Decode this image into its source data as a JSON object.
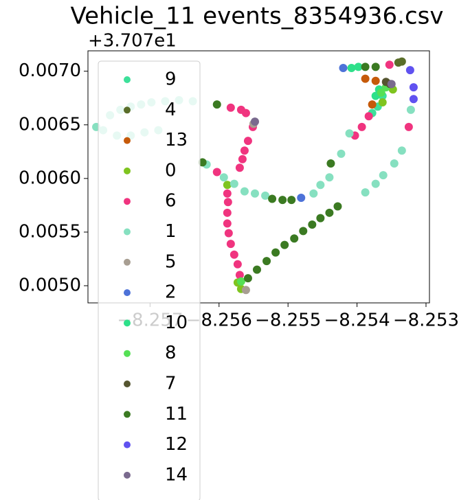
{
  "chart_data": {
    "type": "scatter",
    "title": "Vehicle_11 events_8354936.csv",
    "y_offset_label": "+3.707e1",
    "xlim": [
      -8.2579,
      -8.25295
    ],
    "ylim": [
      0.00484,
      0.00719
    ],
    "xticks": [
      {
        "value": -8.257,
        "label": "−8.257"
      },
      {
        "value": -8.256,
        "label": "−8.256"
      },
      {
        "value": -8.255,
        "label": "−8.255"
      },
      {
        "value": -8.254,
        "label": "−8.254"
      },
      {
        "value": -8.253,
        "label": "−8.253"
      }
    ],
    "yticks": [
      {
        "value": 0.005,
        "label": "0.0050"
      },
      {
        "value": 0.0055,
        "label": "0.0055"
      },
      {
        "value": 0.006,
        "label": "0.0060"
      },
      {
        "value": 0.0065,
        "label": "0.0065"
      },
      {
        "value": 0.007,
        "label": "0.0070"
      }
    ],
    "grid": false,
    "legend": "upper left",
    "series": [
      {
        "name": "9",
        "color": "#3de09a",
        "x": [
          -8.25363,
          -8.2537,
          -8.25378
        ],
        "y": [
          0.00677,
          0.00667,
          0.00661
        ]
      },
      {
        "name": "4",
        "color": "#5a6e2a",
        "x": [
          -8.2534,
          -8.25335,
          -8.25353
        ],
        "y": [
          0.00708,
          0.00709,
          0.00688
        ]
      },
      {
        "name": "13",
        "color": "#c65a0a",
        "x": [
          -8.25378,
          -8.25388,
          -8.25373
        ],
        "y": [
          0.00669,
          0.00693,
          0.00691
        ]
      },
      {
        "name": "0",
        "color": "#7fc41f",
        "x": [
          -8.25573,
          -8.25568,
          -8.25588,
          -8.25348,
          -8.25363
        ],
        "y": [
          0.00503,
          0.00497,
          0.00594,
          0.00683,
          0.00671
        ]
      },
      {
        "name": "6",
        "color": "#f0347f",
        "x": [
          -8.25588,
          -8.25587,
          -8.25588,
          -8.25588,
          -8.25586,
          -8.25583,
          -8.25578,
          -8.25573,
          -8.2557,
          -8.2557,
          -8.25566,
          -8.25563,
          -8.25558,
          -8.25551,
          -8.25583,
          -8.25568,
          -8.25561,
          -8.25603,
          -8.25353,
          -8.25325,
          -8.25383,
          -8.25393,
          -8.25403
        ],
        "y": [
          0.00586,
          0.00578,
          0.00568,
          0.00558,
          0.00549,
          0.00539,
          0.00529,
          0.0052,
          0.0051,
          0.0061,
          0.00618,
          0.00626,
          0.00635,
          0.00648,
          0.00666,
          0.00664,
          0.00661,
          0.00606,
          0.00706,
          0.00648,
          0.00658,
          0.00648,
          0.0064
        ]
      },
      {
        "name": "1",
        "color": "#86e0c0",
        "x": [
          -8.25618,
          -8.25593,
          -8.25578,
          -8.25563,
          -8.25548,
          -8.25533,
          -8.25463,
          -8.25453,
          -8.2544,
          -8.25423,
          -8.25411,
          -8.25388,
          -8.25373,
          -8.25362,
          -8.25346,
          -8.25335,
          -8.25322,
          -8.25758,
          -8.25743,
          -8.25728,
          -8.25713,
          -8.25698,
          -8.25678,
          -8.25658,
          -8.25638,
          -8.25778,
          -8.25768,
          -8.25748,
          -8.25728,
          -8.25708,
          -8.25688
        ],
        "y": [
          0.00613,
          0.00601,
          0.00595,
          0.00588,
          0.00586,
          0.00584,
          0.00586,
          0.00594,
          0.00601,
          0.00623,
          0.00642,
          0.00587,
          0.00595,
          0.00603,
          0.00614,
          0.00626,
          0.00664,
          0.00659,
          0.00664,
          0.00667,
          0.00669,
          0.00671,
          0.00672,
          0.00673,
          0.00672,
          0.00648,
          0.00645,
          0.0064,
          0.0064,
          0.00643,
          0.00645
        ]
      },
      {
        "name": "5",
        "color": "#a89e92",
        "x": [
          -8.2555,
          -8.25561
        ],
        "y": [
          0.00651,
          0.00496
        ]
      },
      {
        "name": "2",
        "color": "#4d72d8",
        "x": [
          -8.2542,
          -8.25481
        ],
        "y": [
          0.00703,
          0.00582
        ]
      },
      {
        "name": "10",
        "color": "#2ee08a",
        "x": [
          -8.25408,
          -8.25398,
          -8.25368,
          -8.25373
        ],
        "y": [
          0.00703,
          0.00704,
          0.00683,
          0.00677
        ]
      },
      {
        "name": "8",
        "color": "#55e055",
        "x": [
          -8.25568,
          -8.25358,
          -8.25365
        ],
        "y": [
          0.00504,
          0.00685,
          0.0068
        ]
      },
      {
        "name": "7",
        "color": "#555530",
        "x": [
          -8.25358,
          -8.25352
        ],
        "y": [
          0.0069,
          0.00688
        ]
      },
      {
        "name": "11",
        "color": "#3b7a22",
        "x": [
          -8.25558,
          -8.25545,
          -8.25531,
          -8.25518,
          -8.25505,
          -8.25491,
          -8.25478,
          -8.25465,
          -8.25453,
          -8.2544,
          -8.25428,
          -8.25523,
          -8.25508,
          -8.25495,
          -8.25438,
          -8.25624,
          -8.25603,
          -8.25388,
          -8.25373
        ],
        "y": [
          0.00507,
          0.00515,
          0.00523,
          0.00531,
          0.00538,
          0.00544,
          0.00551,
          0.00557,
          0.00563,
          0.00568,
          0.00574,
          0.00581,
          0.0058,
          0.0058,
          0.00614,
          0.00615,
          0.00669,
          0.00704,
          0.00704
        ]
      },
      {
        "name": "12",
        "color": "#6052f0",
        "x": [
          -8.25323,
          -8.25318,
          -8.25318
        ],
        "y": [
          0.00701,
          0.00685,
          0.00674
        ]
      },
      {
        "name": "14",
        "color": "#7a6a8e",
        "x": [
          -8.25548,
          -8.2535
        ],
        "y": [
          0.00653,
          0.00688
        ]
      }
    ]
  }
}
